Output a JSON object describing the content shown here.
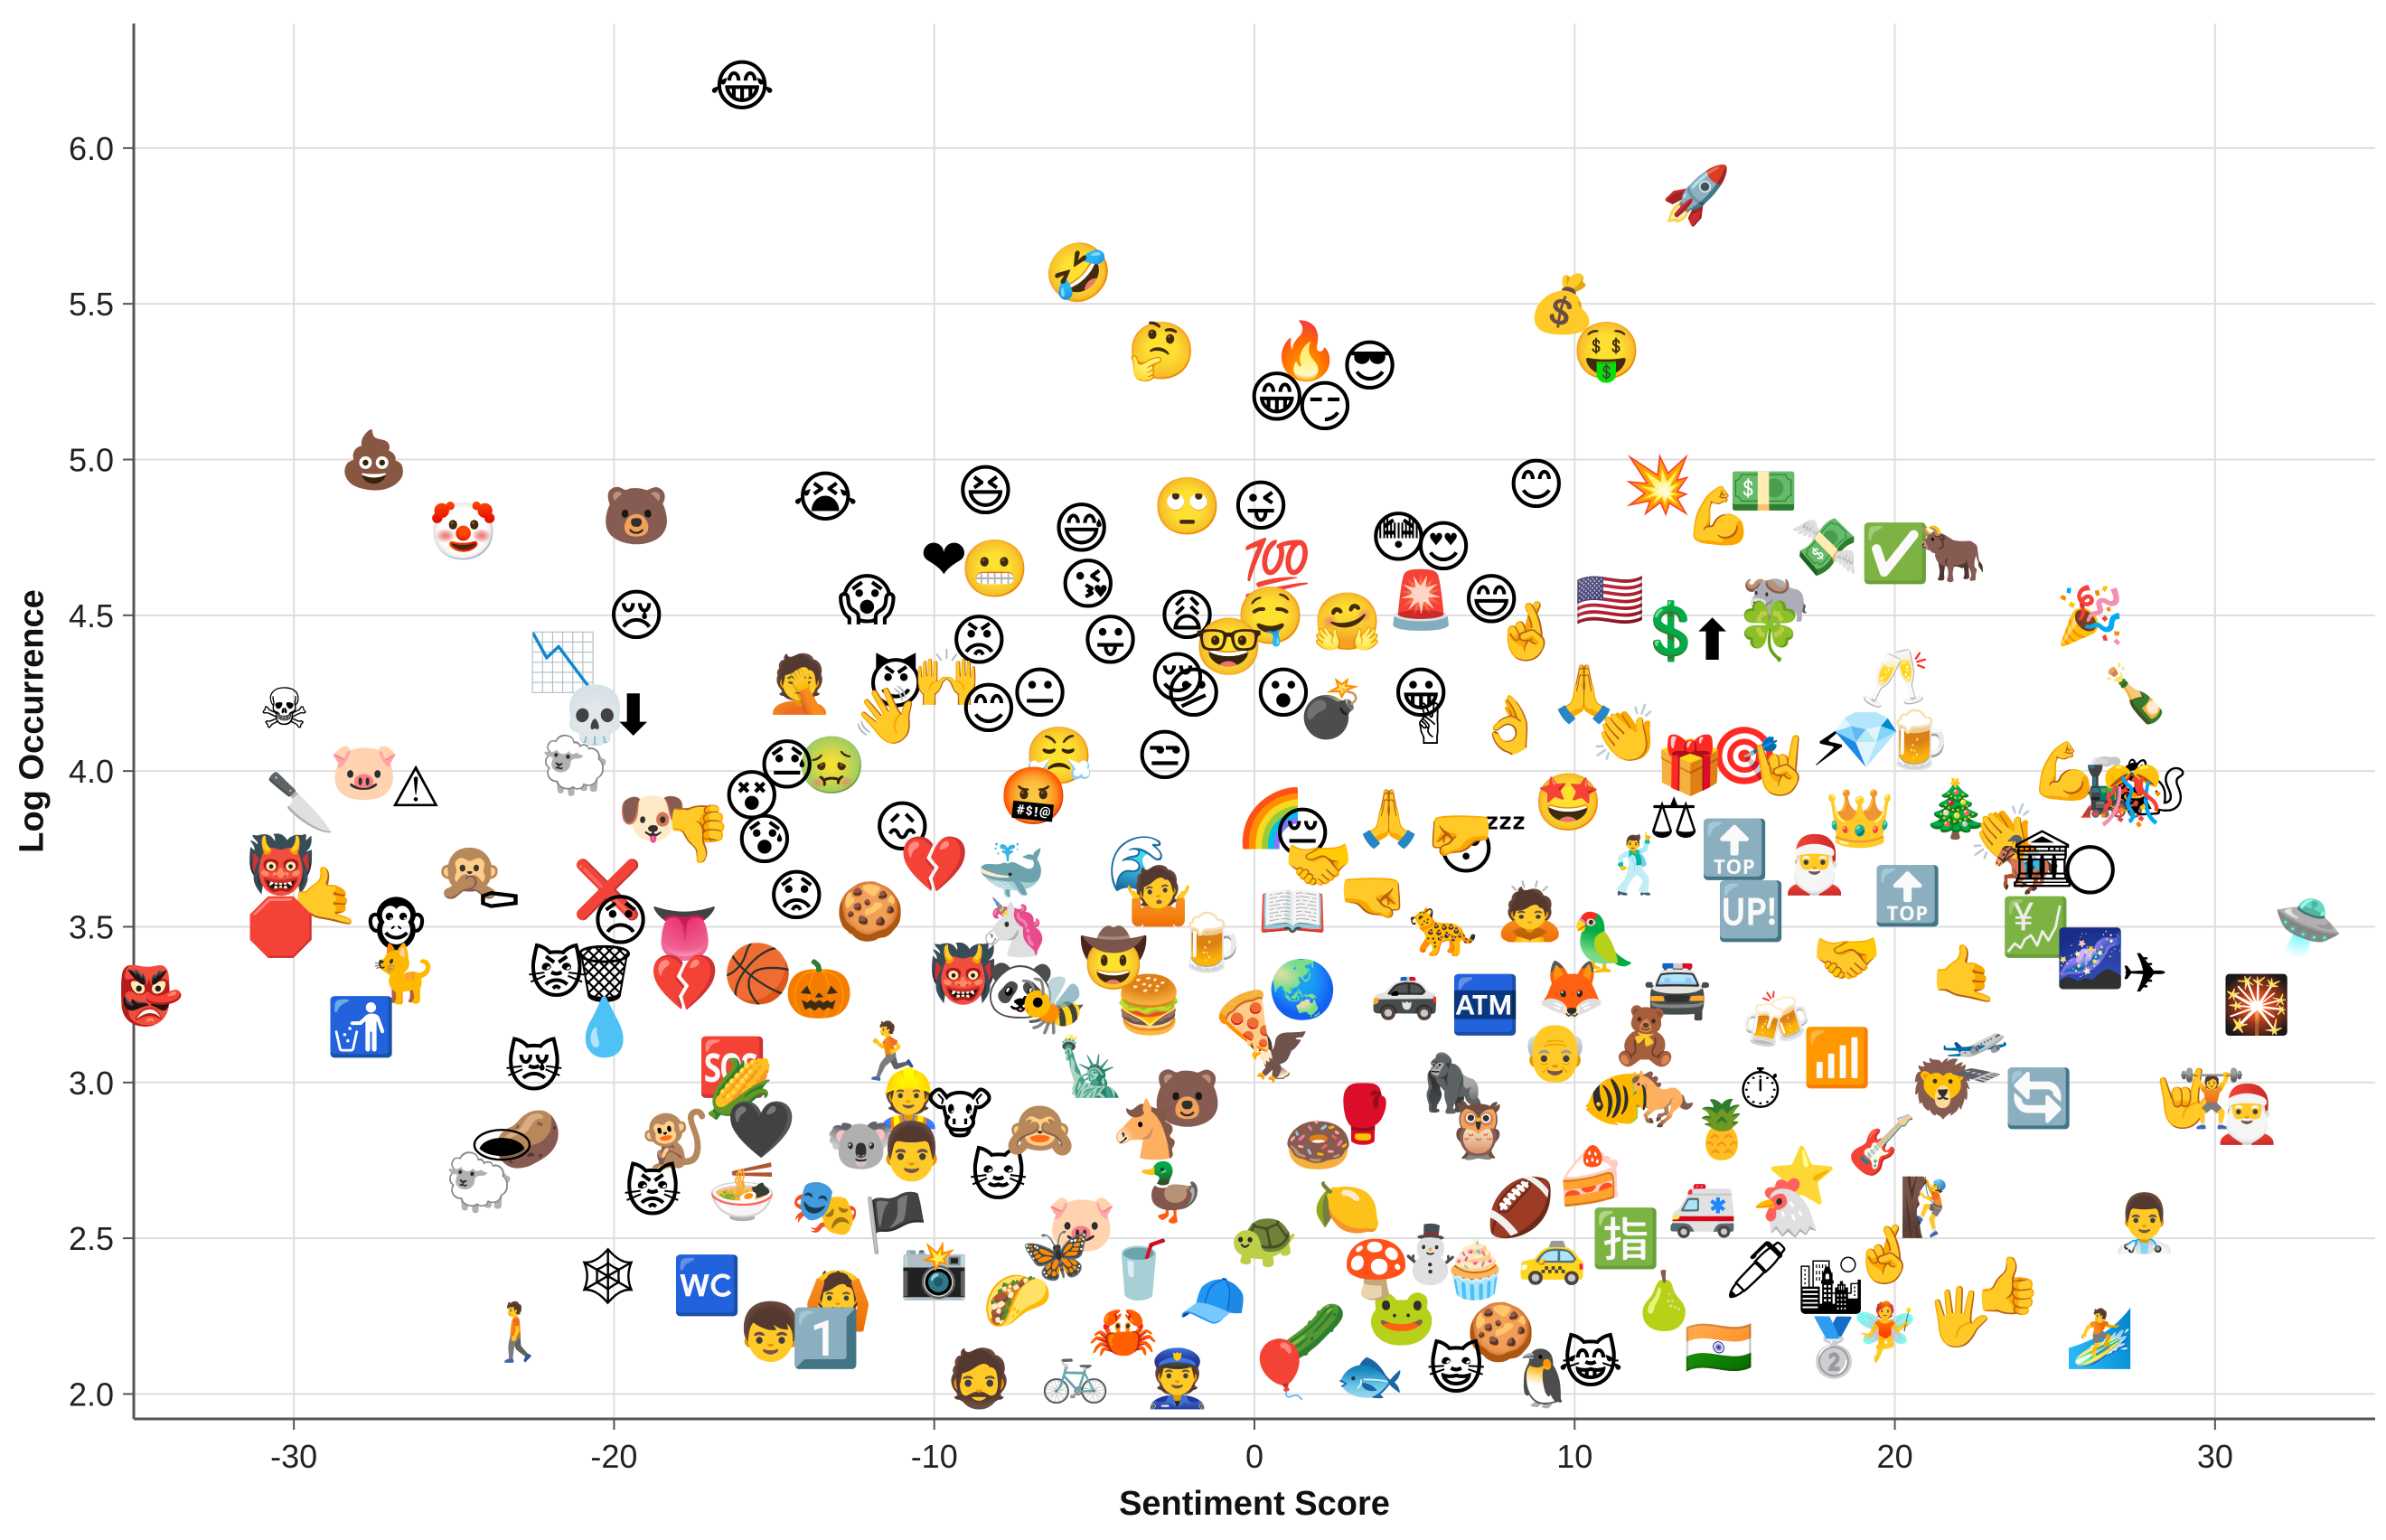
{
  "chart_data": {
    "type": "scatter",
    "xlabel": "Sentiment Score",
    "ylabel": "Log Occurrence",
    "xlim": [
      -35,
      35
    ],
    "ylim": [
      1.92,
      6.4
    ],
    "xticks": [
      -30,
      -20,
      -10,
      0,
      10,
      20,
      30
    ],
    "yticks": [
      2.0,
      2.5,
      3.0,
      3.5,
      4.0,
      4.5,
      5.0,
      5.5,
      6.0
    ],
    "grid": true,
    "colors": {
      "grid": "#dddddd",
      "axis": "#555555"
    },
    "points": [
      {
        "x": -16,
        "y": 6.2,
        "emoji": "😂"
      },
      {
        "x": 13.8,
        "y": 5.85,
        "emoji": "🚀"
      },
      {
        "x": -5.5,
        "y": 5.6,
        "emoji": "🤣"
      },
      {
        "x": 9.6,
        "y": 5.5,
        "emoji": "💰"
      },
      {
        "x": 11,
        "y": 5.35,
        "emoji": "🤑"
      },
      {
        "x": -2.9,
        "y": 5.35,
        "emoji": "🤔"
      },
      {
        "x": 1.6,
        "y": 5.35,
        "emoji": "🔥"
      },
      {
        "x": 3.6,
        "y": 5.3,
        "emoji": "😎"
      },
      {
        "x": 0.7,
        "y": 5.2,
        "emoji": "😁"
      },
      {
        "x": 2.2,
        "y": 5.17,
        "emoji": "😏"
      },
      {
        "x": -27.5,
        "y": 5.0,
        "emoji": "💩"
      },
      {
        "x": 8.8,
        "y": 4.92,
        "emoji": "😊"
      },
      {
        "x": 12.6,
        "y": 4.92,
        "emoji": "💥"
      },
      {
        "x": -13.4,
        "y": 4.88,
        "emoji": "😭"
      },
      {
        "x": -8.4,
        "y": 4.9,
        "emoji": "😆"
      },
      {
        "x": -2.1,
        "y": 4.85,
        "emoji": "🙄"
      },
      {
        "x": 0.2,
        "y": 4.85,
        "emoji": "😜"
      },
      {
        "x": 15.9,
        "y": 4.9,
        "emoji": "💵"
      },
      {
        "x": -19.3,
        "y": 4.82,
        "emoji": "🐻"
      },
      {
        "x": -24.7,
        "y": 4.77,
        "emoji": "🤡"
      },
      {
        "x": -5.4,
        "y": 4.78,
        "emoji": "😅"
      },
      {
        "x": 4.5,
        "y": 4.75,
        "emoji": "😳"
      },
      {
        "x": 5.9,
        "y": 4.72,
        "emoji": "😍"
      },
      {
        "x": 14.5,
        "y": 4.82,
        "emoji": "💪"
      },
      {
        "x": 17.8,
        "y": 4.72,
        "emoji": "💸"
      },
      {
        "x": 20,
        "y": 4.7,
        "emoji": "✅"
      },
      {
        "x": 21.8,
        "y": 4.7,
        "emoji": "🐂"
      },
      {
        "x": -9.7,
        "y": 4.68,
        "emoji": "❤"
      },
      {
        "x": -8.1,
        "y": 4.65,
        "emoji": "😬"
      },
      {
        "x": 0.7,
        "y": 4.65,
        "emoji": "💯"
      },
      {
        "x": -5.2,
        "y": 4.6,
        "emoji": "😘"
      },
      {
        "x": -12.1,
        "y": 4.55,
        "emoji": "😱"
      },
      {
        "x": 7.4,
        "y": 4.55,
        "emoji": "😄"
      },
      {
        "x": 5.2,
        "y": 4.55,
        "emoji": "🚨"
      },
      {
        "x": 11.1,
        "y": 4.55,
        "emoji": "🇺🇸"
      },
      {
        "x": 16.3,
        "y": 4.55,
        "emoji": "🐃"
      },
      {
        "x": -19.3,
        "y": 4.5,
        "emoji": "😢"
      },
      {
        "x": -2.1,
        "y": 4.5,
        "emoji": "😩"
      },
      {
        "x": 0.5,
        "y": 4.5,
        "emoji": "🤤"
      },
      {
        "x": 2.9,
        "y": 4.48,
        "emoji": "🤗"
      },
      {
        "x": -4.5,
        "y": 4.42,
        "emoji": "😛"
      },
      {
        "x": 8.5,
        "y": 4.45,
        "emoji": "🤞"
      },
      {
        "x": 13,
        "y": 4.45,
        "emoji": "💲"
      },
      {
        "x": 14.3,
        "y": 4.42,
        "emoji": "⬆"
      },
      {
        "x": 16.1,
        "y": 4.45,
        "emoji": "🍀"
      },
      {
        "x": 26.1,
        "y": 4.5,
        "emoji": "🎉"
      },
      {
        "x": -8.6,
        "y": 4.42,
        "emoji": "😡"
      },
      {
        "x": -0.8,
        "y": 4.4,
        "emoji": "🤓"
      },
      {
        "x": -21.6,
        "y": 4.35,
        "emoji": "📉"
      },
      {
        "x": -2.4,
        "y": 4.3,
        "emoji": "😌"
      },
      {
        "x": -14.2,
        "y": 4.28,
        "emoji": "🤦"
      },
      {
        "x": -11.2,
        "y": 4.28,
        "emoji": "😈"
      },
      {
        "x": -9.6,
        "y": 4.3,
        "emoji": "🙌"
      },
      {
        "x": 0.9,
        "y": 4.25,
        "emoji": "😮"
      },
      {
        "x": 5.2,
        "y": 4.25,
        "emoji": "😀"
      },
      {
        "x": 10.3,
        "y": 4.25,
        "emoji": "🙏"
      },
      {
        "x": 20,
        "y": 4.3,
        "emoji": "🥂"
      },
      {
        "x": 27.5,
        "y": 4.25,
        "emoji": "🍾"
      },
      {
        "x": -30.3,
        "y": 4.2,
        "emoji": "☠"
      },
      {
        "x": -6.7,
        "y": 4.25,
        "emoji": "😐"
      },
      {
        "x": -8.3,
        "y": 4.2,
        "emoji": "😊"
      },
      {
        "x": -1.9,
        "y": 4.25,
        "emoji": "😕"
      },
      {
        "x": 2.4,
        "y": 4.2,
        "emoji": "💣"
      },
      {
        "x": -20.6,
        "y": 4.18,
        "emoji": "💀"
      },
      {
        "x": -19.4,
        "y": 4.18,
        "emoji": "⬇"
      },
      {
        "x": -11.5,
        "y": 4.18,
        "emoji": "👋"
      },
      {
        "x": 5.5,
        "y": 4.15,
        "emoji": "✌"
      },
      {
        "x": 8,
        "y": 4.15,
        "emoji": "👌"
      },
      {
        "x": 11.6,
        "y": 4.12,
        "emoji": "👏"
      },
      {
        "x": 15.3,
        "y": 4.05,
        "emoji": "🎯"
      },
      {
        "x": 18,
        "y": 4.08,
        "emoji": "⚡"
      },
      {
        "x": 19.1,
        "y": 4.1,
        "emoji": "💎"
      },
      {
        "x": 20.7,
        "y": 4.1,
        "emoji": "🍺"
      },
      {
        "x": -2.8,
        "y": 4.05,
        "emoji": "😒"
      },
      {
        "x": -13.2,
        "y": 4.02,
        "emoji": "🤢"
      },
      {
        "x": -14.6,
        "y": 4.02,
        "emoji": "😓"
      },
      {
        "x": -6.1,
        "y": 4.05,
        "emoji": "😤"
      },
      {
        "x": 13.6,
        "y": 4.02,
        "emoji": "🎁"
      },
      {
        "x": 16.4,
        "y": 4.02,
        "emoji": "🤘"
      },
      {
        "x": -21.2,
        "y": 4.02,
        "emoji": "🐑"
      },
      {
        "x": -27.8,
        "y": 4.0,
        "emoji": "🐷"
      },
      {
        "x": -26.2,
        "y": 3.95,
        "emoji": "⚠"
      },
      {
        "x": 25.3,
        "y": 4.0,
        "emoji": "💪"
      },
      {
        "x": 26.8,
        "y": 3.95,
        "emoji": "🚂"
      },
      {
        "x": 28,
        "y": 3.95,
        "emoji": "🐿"
      },
      {
        "x": -29.8,
        "y": 3.9,
        "emoji": "🔪"
      },
      {
        "x": -15.7,
        "y": 3.92,
        "emoji": "😵"
      },
      {
        "x": -6.9,
        "y": 3.92,
        "emoji": "🤬"
      },
      {
        "x": 0.5,
        "y": 3.85,
        "emoji": "🌈"
      },
      {
        "x": 4.2,
        "y": 3.85,
        "emoji": "🙏"
      },
      {
        "x": 9.8,
        "y": 3.9,
        "emoji": "🤩"
      },
      {
        "x": 27.4,
        "y": 3.92,
        "emoji": "🎊"
      },
      {
        "x": 21.9,
        "y": 3.88,
        "emoji": "🎄"
      },
      {
        "x": -18.8,
        "y": 3.85,
        "emoji": "🐶"
      },
      {
        "x": -17.4,
        "y": 3.8,
        "emoji": "👎"
      },
      {
        "x": -11,
        "y": 3.82,
        "emoji": "😖"
      },
      {
        "x": 23.4,
        "y": 3.8,
        "emoji": "👏"
      },
      {
        "x": -15.3,
        "y": 3.78,
        "emoji": "😰"
      },
      {
        "x": 1.5,
        "y": 3.8,
        "emoji": "😔"
      },
      {
        "x": 7.1,
        "y": 3.75,
        "emoji": "😴"
      },
      {
        "x": 15,
        "y": 3.75,
        "emoji": "🔝"
      },
      {
        "x": -30.4,
        "y": 3.7,
        "emoji": "👹"
      },
      {
        "x": -24.5,
        "y": 3.68,
        "emoji": "🙊"
      },
      {
        "x": -7.6,
        "y": 3.68,
        "emoji": "🐳"
      },
      {
        "x": -10,
        "y": 3.7,
        "emoji": "💔"
      },
      {
        "x": -3.5,
        "y": 3.7,
        "emoji": "🌊"
      },
      {
        "x": 24.1,
        "y": 3.7,
        "emoji": "🏇"
      },
      {
        "x": 24.6,
        "y": 3.72,
        "emoji": "🏛"
      },
      {
        "x": 26.1,
        "y": 3.68,
        "emoji": "🌕"
      },
      {
        "x": -20.2,
        "y": 3.62,
        "emoji": "❌"
      },
      {
        "x": -29,
        "y": 3.6,
        "emoji": "🤙"
      },
      {
        "x": -23.6,
        "y": 3.58,
        "emoji": "⚰"
      },
      {
        "x": -14.3,
        "y": 3.6,
        "emoji": "😟"
      },
      {
        "x": -12,
        "y": 3.55,
        "emoji": "🍪"
      },
      {
        "x": 1.2,
        "y": 3.55,
        "emoji": "📖"
      },
      {
        "x": -30.4,
        "y": 3.5,
        "emoji": "🛑"
      },
      {
        "x": -26.8,
        "y": 3.5,
        "emoji": "🐵"
      },
      {
        "x": -19.8,
        "y": 3.52,
        "emoji": "😞"
      },
      {
        "x": -17.8,
        "y": 3.48,
        "emoji": "👅"
      },
      {
        "x": 15.5,
        "y": 3.55,
        "emoji": "🆙"
      },
      {
        "x": 24.4,
        "y": 3.5,
        "emoji": "💹"
      },
      {
        "x": 32.9,
        "y": 3.5,
        "emoji": "🛸"
      },
      {
        "x": -26.6,
        "y": 3.35,
        "emoji": "🐈"
      },
      {
        "x": -21.8,
        "y": 3.35,
        "emoji": "😾"
      },
      {
        "x": -20.3,
        "y": 3.35,
        "emoji": "🗑"
      },
      {
        "x": -17.8,
        "y": 3.32,
        "emoji": "💔"
      },
      {
        "x": -15.5,
        "y": 3.35,
        "emoji": "🏀"
      },
      {
        "x": -13.6,
        "y": 3.3,
        "emoji": "🎃"
      },
      {
        "x": -9.1,
        "y": 3.35,
        "emoji": "👹"
      },
      {
        "x": -7.3,
        "y": 3.3,
        "emoji": "🐼"
      },
      {
        "x": 26.1,
        "y": 3.4,
        "emoji": "🌌"
      },
      {
        "x": 27.8,
        "y": 3.35,
        "emoji": "✈"
      },
      {
        "x": 22.2,
        "y": 3.35,
        "emoji": "🤙"
      },
      {
        "x": 31.3,
        "y": 3.25,
        "emoji": "🎇"
      },
      {
        "x": -34.5,
        "y": 3.28,
        "emoji": "👺"
      },
      {
        "x": -6.3,
        "y": 3.25,
        "emoji": "🐝"
      },
      {
        "x": -3.3,
        "y": 3.25,
        "emoji": "🍔"
      },
      {
        "x": 7.2,
        "y": 3.25,
        "emoji": "🏧"
      },
      {
        "x": -27.9,
        "y": 3.18,
        "emoji": "🚮"
      },
      {
        "x": -20.3,
        "y": 3.18,
        "emoji": "💧"
      },
      {
        "x": 18.2,
        "y": 3.08,
        "emoji": "📶"
      },
      {
        "x": -16.3,
        "y": 3.05,
        "emoji": "🆘"
      },
      {
        "x": -22.5,
        "y": 3.05,
        "emoji": "😿"
      },
      {
        "x": -16.1,
        "y": 2.98,
        "emoji": "🌽"
      },
      {
        "x": -10.8,
        "y": 2.95,
        "emoji": "👷"
      },
      {
        "x": 15.8,
        "y": 2.98,
        "emoji": "⏱"
      },
      {
        "x": 21.5,
        "y": 2.98,
        "emoji": "🦁"
      },
      {
        "x": 24.5,
        "y": 2.95,
        "emoji": "🔄"
      },
      {
        "x": 29.1,
        "y": 2.95,
        "emoji": "🤟"
      },
      {
        "x": 29.9,
        "y": 2.95,
        "emoji": "🏋"
      },
      {
        "x": 31,
        "y": 2.9,
        "emoji": "🎅"
      },
      {
        "x": -22.7,
        "y": 2.82,
        "emoji": "🥔"
      },
      {
        "x": -18.1,
        "y": 2.82,
        "emoji": "🐒"
      },
      {
        "x": -15.4,
        "y": 2.85,
        "emoji": "🖤"
      },
      {
        "x": -12.3,
        "y": 2.8,
        "emoji": "🐨"
      },
      {
        "x": -10.7,
        "y": 2.78,
        "emoji": "👨"
      },
      {
        "x": -23.5,
        "y": 2.8,
        "emoji": "🕳"
      },
      {
        "x": -24.2,
        "y": 2.68,
        "emoji": "🐑"
      },
      {
        "x": -18.8,
        "y": 2.65,
        "emoji": "😾"
      },
      {
        "x": -16,
        "y": 2.65,
        "emoji": "🍜"
      },
      {
        "x": 17.1,
        "y": 2.7,
        "emoji": "⭐"
      },
      {
        "x": 27.8,
        "y": 2.55,
        "emoji": "👨‍⚕️"
      },
      {
        "x": -20.2,
        "y": 2.38,
        "emoji": "🕸"
      },
      {
        "x": -17.1,
        "y": 2.35,
        "emoji": "🚾"
      },
      {
        "x": -13,
        "y": 2.3,
        "emoji": "🙆"
      },
      {
        "x": 11.6,
        "y": 2.5,
        "emoji": "🈯"
      },
      {
        "x": 15.7,
        "y": 2.4,
        "emoji": "🖊"
      },
      {
        "x": 18,
        "y": 2.35,
        "emoji": "🏙"
      },
      {
        "x": 19.7,
        "y": 2.45,
        "emoji": "🤞"
      },
      {
        "x": 23.5,
        "y": 2.35,
        "emoji": "👍"
      },
      {
        "x": -23,
        "y": 2.2,
        "emoji": "🚶"
      },
      {
        "x": -15.1,
        "y": 2.2,
        "emoji": "👦"
      },
      {
        "x": -13.4,
        "y": 2.18,
        "emoji": "1️⃣"
      },
      {
        "x": 18.1,
        "y": 2.15,
        "emoji": "🥈"
      },
      {
        "x": 19.7,
        "y": 2.2,
        "emoji": "🧚"
      },
      {
        "x": 22,
        "y": 2.25,
        "emoji": "🖐"
      },
      {
        "x": 26.4,
        "y": 2.18,
        "emoji": "🏄"
      },
      {
        "x": -3,
        "y": 3.6,
        "emoji": "🤷"
      },
      {
        "x": -1.4,
        "y": 3.45,
        "emoji": "🍺"
      },
      {
        "x": 1.5,
        "y": 3.3,
        "emoji": "🌏"
      },
      {
        "x": 3.7,
        "y": 3.6,
        "emoji": "🤜"
      },
      {
        "x": 5.9,
        "y": 3.5,
        "emoji": "🐆"
      },
      {
        "x": 8.6,
        "y": 3.55,
        "emoji": "🙇"
      },
      {
        "x": 10.9,
        "y": 3.45,
        "emoji": "🦜"
      },
      {
        "x": 13.2,
        "y": 3.3,
        "emoji": "🚔"
      },
      {
        "x": -5.1,
        "y": 3.05,
        "emoji": "🗽"
      },
      {
        "x": -2.1,
        "y": 2.95,
        "emoji": "🐻"
      },
      {
        "x": 0.7,
        "y": 3.1,
        "emoji": "🦅"
      },
      {
        "x": 3.4,
        "y": 2.9,
        "emoji": "🥊"
      },
      {
        "x": 6.2,
        "y": 3.0,
        "emoji": "🦍"
      },
      {
        "x": 9.4,
        "y": 3.1,
        "emoji": "👴"
      },
      {
        "x": 12.7,
        "y": 2.95,
        "emoji": "🐎"
      },
      {
        "x": -8,
        "y": 2.7,
        "emoji": "🐱"
      },
      {
        "x": -5.4,
        "y": 2.55,
        "emoji": "🐷"
      },
      {
        "x": -2.6,
        "y": 2.65,
        "emoji": "🦆"
      },
      {
        "x": 0.3,
        "y": 2.5,
        "emoji": "🐢"
      },
      {
        "x": 2.9,
        "y": 2.6,
        "emoji": "🍋"
      },
      {
        "x": 5.5,
        "y": 2.45,
        "emoji": "⛄"
      },
      {
        "x": 8.3,
        "y": 2.6,
        "emoji": "🏈"
      },
      {
        "x": 10.5,
        "y": 2.7,
        "emoji": "🍰"
      },
      {
        "x": 14,
        "y": 2.6,
        "emoji": "🚑"
      },
      {
        "x": -10,
        "y": 2.4,
        "emoji": "📸"
      },
      {
        "x": -7.4,
        "y": 2.3,
        "emoji": "🌮"
      },
      {
        "x": -4.1,
        "y": 2.2,
        "emoji": "🦀"
      },
      {
        "x": -1.3,
        "y": 2.3,
        "emoji": "🧢"
      },
      {
        "x": 1.8,
        "y": 2.2,
        "emoji": "🥒"
      },
      {
        "x": 4.6,
        "y": 2.25,
        "emoji": "🐸"
      },
      {
        "x": 7.7,
        "y": 2.2,
        "emoji": "🍪"
      },
      {
        "x": 10.5,
        "y": 2.1,
        "emoji": "😹"
      },
      {
        "x": 12.8,
        "y": 2.3,
        "emoji": "🍐"
      },
      {
        "x": -8.6,
        "y": 2.05,
        "emoji": "🧔"
      },
      {
        "x": -5.6,
        "y": 2.07,
        "emoji": "🚲"
      },
      {
        "x": -2.4,
        "y": 2.05,
        "emoji": "👮"
      },
      {
        "x": 0.8,
        "y": 2.08,
        "emoji": "🎈"
      },
      {
        "x": 3.6,
        "y": 2.06,
        "emoji": "🐟"
      },
      {
        "x": 6.3,
        "y": 2.08,
        "emoji": "😺"
      },
      {
        "x": 9,
        "y": 2.05,
        "emoji": "🐧"
      },
      {
        "x": -11.4,
        "y": 3.1,
        "emoji": "🏃"
      },
      {
        "x": -13.4,
        "y": 2.6,
        "emoji": "🎭"
      },
      {
        "x": -11.2,
        "y": 2.55,
        "emoji": "🏴"
      },
      {
        "x": 16.3,
        "y": 3.2,
        "emoji": "🍻"
      },
      {
        "x": 19.6,
        "y": 2.8,
        "emoji": "🎸"
      },
      {
        "x": 18.5,
        "y": 3.4,
        "emoji": "🤝"
      },
      {
        "x": 20.4,
        "y": 3.6,
        "emoji": "🔝"
      },
      {
        "x": 22.5,
        "y": 3.1,
        "emoji": "🛫"
      },
      {
        "x": 14.5,
        "y": 2.15,
        "emoji": "🇮🇳"
      },
      {
        "x": 16.6,
        "y": 2.6,
        "emoji": "🐔"
      },
      {
        "x": 21.2,
        "y": 2.6,
        "emoji": "🧗"
      },
      {
        "x": -7.5,
        "y": 3.5,
        "emoji": "🦄"
      },
      {
        "x": -4.4,
        "y": 3.4,
        "emoji": "🤠"
      },
      {
        "x": 2,
        "y": 3.7,
        "emoji": "🤝"
      },
      {
        "x": 6.4,
        "y": 3.8,
        "emoji": "🤛"
      },
      {
        "x": 11.9,
        "y": 3.7,
        "emoji": "🕺"
      },
      {
        "x": 13.1,
        "y": 3.85,
        "emoji": "⚖"
      },
      {
        "x": 17.5,
        "y": 3.7,
        "emoji": "🎅"
      },
      {
        "x": 18.9,
        "y": 3.85,
        "emoji": "👑"
      },
      {
        "x": -0.3,
        "y": 3.2,
        "emoji": "🍕"
      },
      {
        "x": 4.7,
        "y": 3.3,
        "emoji": "🚓"
      },
      {
        "x": 9.9,
        "y": 3.3,
        "emoji": "🦊"
      },
      {
        "x": 12.2,
        "y": 3.15,
        "emoji": "🧸"
      },
      {
        "x": -9.2,
        "y": 2.9,
        "emoji": "🐮"
      },
      {
        "x": -6.7,
        "y": 2.85,
        "emoji": "🙈"
      },
      {
        "x": -3.4,
        "y": 2.85,
        "emoji": "🐴"
      },
      {
        "x": 2,
        "y": 2.8,
        "emoji": "🍩"
      },
      {
        "x": 7,
        "y": 2.85,
        "emoji": "🦉"
      },
      {
        "x": 11.3,
        "y": 2.95,
        "emoji": "🐠"
      },
      {
        "x": 14.6,
        "y": 2.85,
        "emoji": "🍍"
      },
      {
        "x": -6.2,
        "y": 2.45,
        "emoji": "🦋"
      },
      {
        "x": -3.6,
        "y": 2.4,
        "emoji": "🥤"
      },
      {
        "x": 3.8,
        "y": 2.4,
        "emoji": "🍄"
      },
      {
        "x": 6.9,
        "y": 2.4,
        "emoji": "🧁"
      },
      {
        "x": 9.3,
        "y": 2.45,
        "emoji": "🚕"
      }
    ]
  }
}
